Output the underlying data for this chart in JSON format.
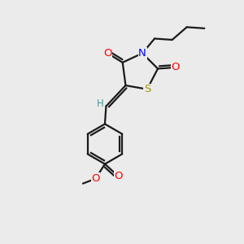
{
  "bg_color": "#ebebeb",
  "bond_color": "#1a1a1a",
  "bond_width": 1.6,
  "atom_colors": {
    "O": "#ff0000",
    "N": "#0000ff",
    "S": "#999900",
    "H": "#4a9a9a",
    "C": "#1a1a1a"
  },
  "font_size": 9.5
}
